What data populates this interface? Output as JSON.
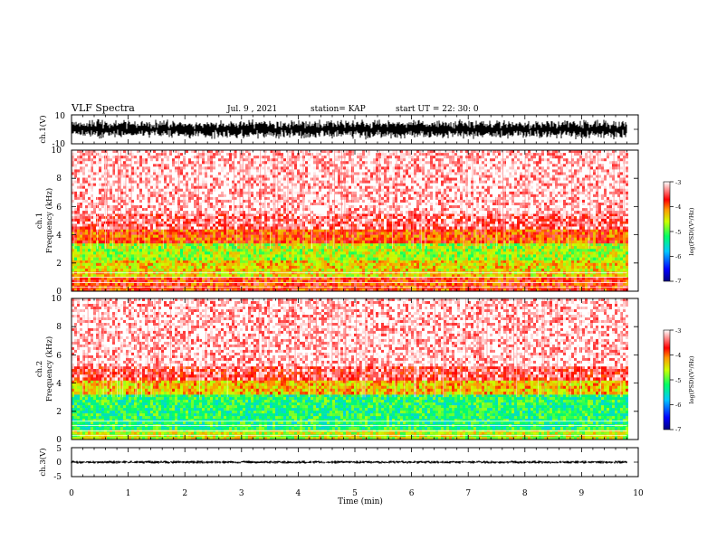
{
  "header": {
    "title": "VLF Spectra",
    "date": "Jul. 9 , 2021",
    "station": "station= KAP",
    "start": "start UT = 22: 30: 0"
  },
  "colors": {
    "waveform": "#000000",
    "colormap": [
      "#000080",
      "#0000ff",
      "#00c8ff",
      "#00ff66",
      "#ccff00",
      "#ff9900",
      "#ff0000",
      "#ffffff"
    ]
  },
  "chart_data": [
    {
      "type": "line",
      "name": "ch1-waveform",
      "ylabel": "ch.1(V)",
      "ylim": [
        -10,
        10
      ],
      "yticks": [
        "10",
        "-10"
      ],
      "xlim": [
        0,
        10
      ],
      "trace_level": [
        -4,
        4
      ]
    },
    {
      "type": "heatmap",
      "name": "ch1-spectrogram",
      "ylabel_top": "ch.1",
      "ylabel": "Frequency (kHz)",
      "ylim": [
        0,
        10
      ],
      "yticks": [
        "0",
        "2",
        "4",
        "6",
        "8",
        "10"
      ],
      "xlim": [
        0,
        10
      ],
      "data_end_min": 9.8,
      "bands_khz": [
        {
          "from": 0,
          "to": 1.0,
          "level": -3.8
        },
        {
          "from": 1.0,
          "to": 2.2,
          "level": -4.4
        },
        {
          "from": 2.2,
          "to": 3.4,
          "level": -4.7
        },
        {
          "from": 3.4,
          "to": 4.4,
          "level": -3.9
        },
        {
          "from": 4.4,
          "to": 5.5,
          "level": -3.4
        },
        {
          "from": 5.5,
          "to": 10.0,
          "level": -3.1
        }
      ],
      "colorbar": {
        "ticks": [
          "-3",
          "-4",
          "-5",
          "-6",
          "-7"
        ],
        "range": [
          -7,
          -3
        ],
        "label": "log(PSD)(V²/Hz)"
      }
    },
    {
      "type": "heatmap",
      "name": "ch2-spectrogram",
      "ylabel_top": "ch.2",
      "ylabel": "Frequency (kHz)",
      "ylim": [
        0,
        10
      ],
      "yticks": [
        "0",
        "2",
        "4",
        "6",
        "8",
        "10"
      ],
      "xlim": [
        0,
        10
      ],
      "data_end_min": 9.8,
      "bands_khz": [
        {
          "from": 0,
          "to": 0.7,
          "level": -4.6
        },
        {
          "from": 0.7,
          "to": 3.2,
          "level": -5.2
        },
        {
          "from": 3.2,
          "to": 4.2,
          "level": -4.3
        },
        {
          "from": 4.2,
          "to": 5.2,
          "level": -3.5
        },
        {
          "from": 5.2,
          "to": 10.0,
          "level": -3.1
        }
      ],
      "colorbar": {
        "ticks": [
          "-3",
          "-4",
          "-5",
          "-6",
          "-7"
        ],
        "range": [
          -7,
          -3
        ],
        "label": "log(PSD)(V²/Hz)"
      }
    },
    {
      "type": "line",
      "name": "ch3-waveform",
      "ylabel": "ch.3(V)",
      "ylim": [
        -5,
        5
      ],
      "yticks": [
        "5",
        "0",
        "-5"
      ],
      "xlim": [
        0,
        10
      ],
      "trace_level": [
        -0.5,
        0.5
      ]
    }
  ],
  "xaxis": {
    "label": "Time (min)",
    "ticks": [
      "0",
      "1",
      "2",
      "3",
      "4",
      "5",
      "6",
      "7",
      "8",
      "9",
      "10"
    ],
    "range": [
      0,
      10
    ]
  }
}
